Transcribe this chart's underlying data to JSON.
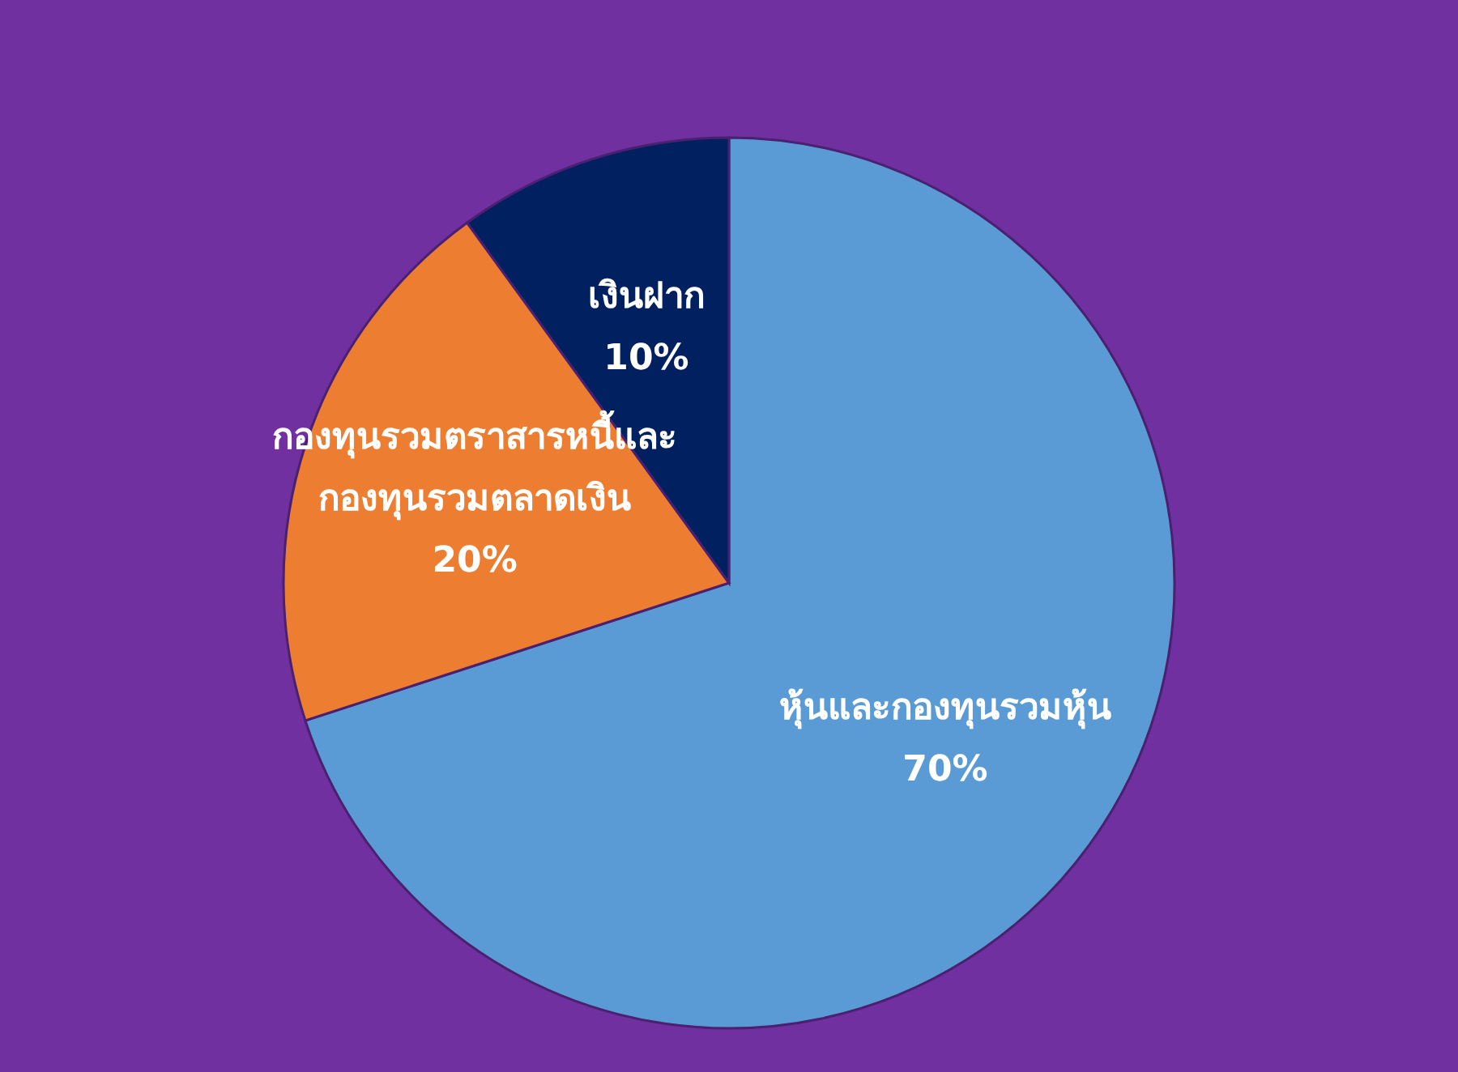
{
  "chart_data": {
    "type": "pie",
    "categories": [
      "หุ้นและกองทุนรวมหุ้น",
      "กองทุนรวมตราสารหนี้และ\nกองทุนรวมตลาดเงิน",
      "เงินฝาก"
    ],
    "values": [
      70,
      20,
      10
    ],
    "colors": [
      "#5b9bd5",
      "#ed7d31",
      "#002060"
    ],
    "value_labels": [
      "70%",
      "20%",
      "10%"
    ]
  }
}
